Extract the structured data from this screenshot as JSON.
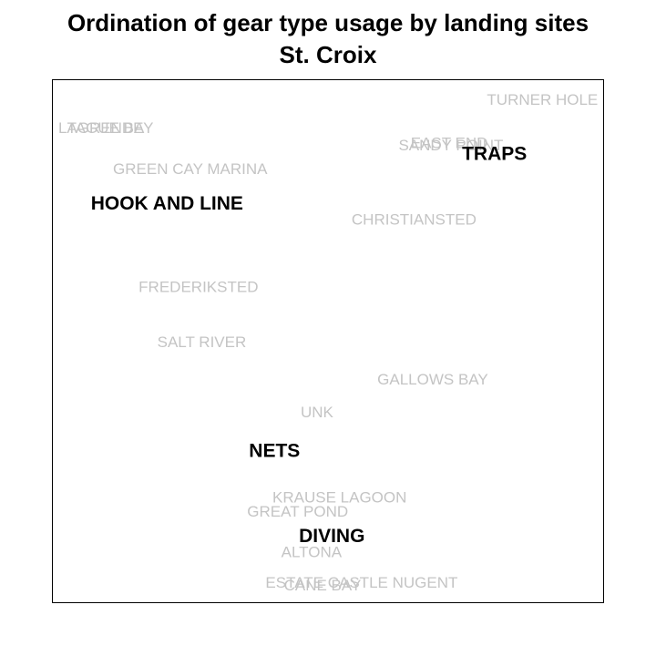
{
  "chart_data": {
    "type": "scatter",
    "title": "Ordination of gear type usage by landing sites",
    "subtitle": "St. Croix",
    "xlabel": "",
    "ylabel": "",
    "xlim": [
      0,
      100
    ],
    "ylim": [
      0,
      100
    ],
    "grid": false,
    "site_color": "#c4c4c4",
    "gear_color": "#000000",
    "sites": [
      {
        "label": "TURNER HOLE",
        "x": 88.9,
        "y": 96.2
      },
      {
        "label": "TAGUE BAY",
        "x": 10.5,
        "y": 90.8
      },
      {
        "label": "LAGRENDE",
        "x": 8.8,
        "y": 90.8
      },
      {
        "label": "SANDY POINT",
        "x": 72.3,
        "y": 87.5
      },
      {
        "label": "EAST END",
        "x": 72.0,
        "y": 87.9
      },
      {
        "label": "GREEN CAY MARINA",
        "x": 25.0,
        "y": 82.9
      },
      {
        "label": "CHRISTIANSTED",
        "x": 65.6,
        "y": 73.3
      },
      {
        "label": "FREDERIKSTED",
        "x": 26.5,
        "y": 60.4
      },
      {
        "label": "SALT RIVER",
        "x": 27.1,
        "y": 49.8
      },
      {
        "label": "GALLOWS BAY",
        "x": 69.0,
        "y": 42.7
      },
      {
        "label": "UNK",
        "x": 48.0,
        "y": 36.4
      },
      {
        "label": "KRAUSE LAGOON",
        "x": 52.1,
        "y": 20.1
      },
      {
        "label": "GREAT POND",
        "x": 44.5,
        "y": 17.4
      },
      {
        "label": "ALTONA",
        "x": 47.0,
        "y": 9.7
      },
      {
        "label": "ESTATE CASTLE NUGENT",
        "x": 56.1,
        "y": 3.8
      },
      {
        "label": "CANE BAY",
        "x": 49.0,
        "y": 3.3
      }
    ],
    "gears": [
      {
        "label": "TRAPS",
        "x": 80.2,
        "y": 85.8
      },
      {
        "label": "HOOK AND LINE",
        "x": 20.8,
        "y": 76.3
      },
      {
        "label": "NETS",
        "x": 40.3,
        "y": 29.0
      },
      {
        "label": "DIVING",
        "x": 50.7,
        "y": 12.7
      }
    ]
  }
}
